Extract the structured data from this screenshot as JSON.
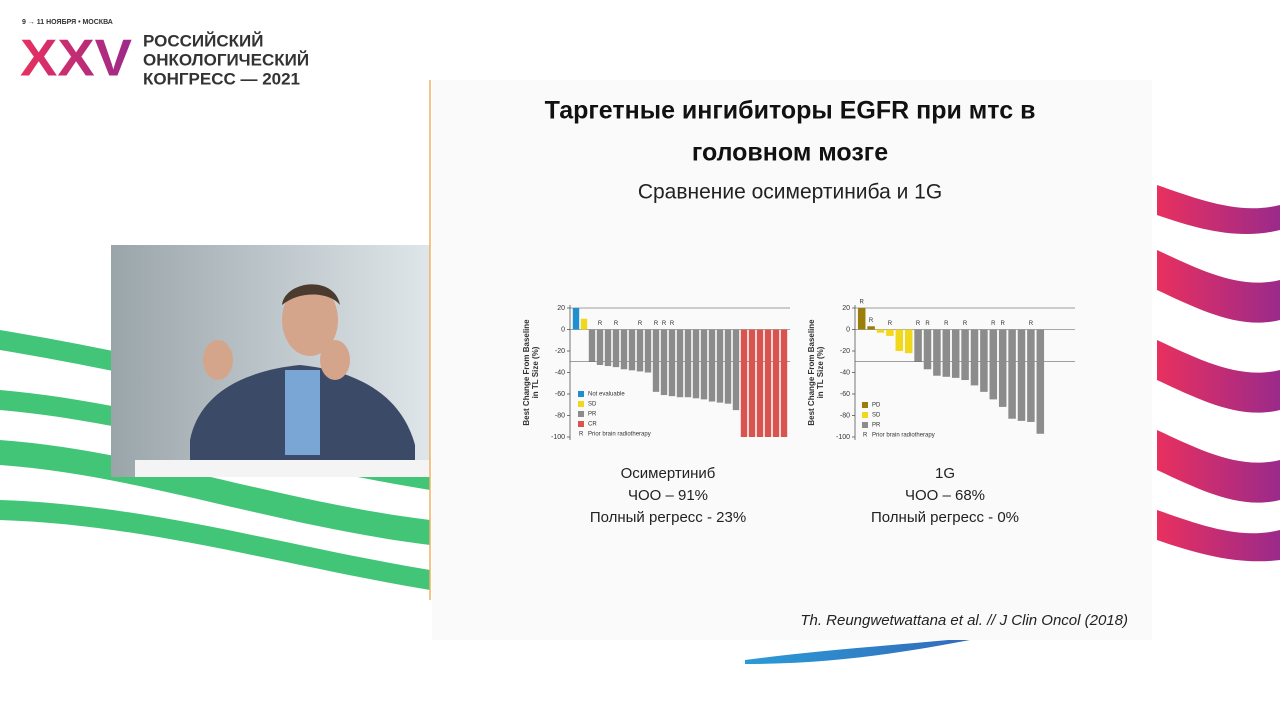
{
  "header": {
    "date": "9 → 11 НОЯБРЯ • МОСКВА",
    "logo": "XXV",
    "title_lines": [
      "РОССИЙСКИЙ",
      "ОНКОЛОГИЧЕСКИЙ",
      "КОНГРЕСС — 2021"
    ]
  },
  "slide": {
    "title_lines": [
      "Таргетные ингибиторы EGFR при мтс в",
      "головном мозге"
    ],
    "subtitle": "Сравнение осимертиниба и 1G",
    "citation": "Th. Reungwetwattana et al. // J Clin Oncol (2018)"
  },
  "chart_data": [
    {
      "type": "bar",
      "ylabel": [
        "Best Change From Baseline",
        "in TL Size (%)"
      ],
      "ylim": [
        -100,
        20
      ],
      "yticks": [
        20,
        0,
        -20,
        -40,
        -60,
        -80,
        -100
      ],
      "reference_lines": [
        20,
        -30
      ],
      "series": [
        {
          "name": "Not evaluable",
          "color": "#1f8fd0",
          "values": [
            20,
            null,
            null,
            null,
            null,
            null,
            null,
            null,
            null,
            null,
            null,
            null,
            null,
            null,
            null,
            null,
            null,
            null,
            null,
            null,
            null,
            null,
            null,
            null,
            null,
            null,
            null
          ]
        },
        {
          "name": "SD",
          "color": "#f2d81c",
          "values": [
            null,
            10,
            null,
            null,
            null,
            null,
            null,
            null,
            null,
            null,
            null,
            null,
            null,
            null,
            null,
            null,
            null,
            null,
            null,
            null,
            null,
            null,
            null,
            null,
            null,
            null,
            null
          ]
        },
        {
          "name": "PR",
          "color": "#8c8c8c",
          "values": [
            null,
            null,
            -30,
            -33,
            -34,
            -35,
            -37,
            -38,
            -39,
            -40,
            -58,
            -61,
            -62,
            -63,
            -63,
            -64,
            -65,
            -67,
            -68,
            -69,
            -75,
            null,
            null,
            null,
            null,
            null,
            null
          ]
        },
        {
          "name": "CR",
          "color": "#d9534f",
          "values": [
            null,
            null,
            null,
            null,
            null,
            null,
            null,
            null,
            null,
            null,
            null,
            null,
            null,
            null,
            null,
            null,
            null,
            null,
            null,
            null,
            null,
            -100,
            -100,
            -100,
            -100,
            -100,
            -100
          ]
        }
      ],
      "markers": [
        null,
        null,
        null,
        "R",
        null,
        "R",
        null,
        null,
        "R",
        null,
        "R",
        "R",
        "R",
        null,
        null,
        null,
        null,
        null,
        null,
        null,
        null,
        null,
        null,
        null,
        null,
        null,
        null
      ],
      "marker_legend": {
        "symbol": "R",
        "label": "Prior brain radiotherapy"
      },
      "caption": [
        "Осимертиниб",
        "ЧОО – 91%",
        "Полный регресс - 23%"
      ]
    },
    {
      "type": "bar",
      "ylabel": [
        "Best Change From Baseline",
        "in TL Size (%)"
      ],
      "ylim": [
        -100,
        20
      ],
      "yticks": [
        20,
        0,
        -20,
        -40,
        -60,
        -80,
        -100
      ],
      "reference_lines": [
        20,
        -30
      ],
      "series": [
        {
          "name": "PD",
          "color": "#9a7d0a",
          "values": [
            20,
            3,
            null,
            null,
            null,
            null,
            null,
            null,
            null,
            null,
            null,
            null,
            null,
            null,
            null,
            null,
            null,
            null,
            null,
            null
          ]
        },
        {
          "name": "SD",
          "color": "#f2d81c",
          "values": [
            null,
            null,
            -3,
            -6,
            -20,
            -22,
            null,
            null,
            null,
            null,
            null,
            null,
            null,
            null,
            null,
            null,
            null,
            null,
            null,
            null
          ]
        },
        {
          "name": "PR",
          "color": "#8c8c8c",
          "values": [
            null,
            null,
            null,
            null,
            null,
            null,
            -30,
            -37,
            -43,
            -44,
            -45,
            -47,
            -52,
            -58,
            -65,
            -72,
            -83,
            -85,
            -86,
            -97
          ]
        }
      ],
      "markers": [
        "R",
        "R",
        null,
        "R",
        null,
        null,
        "R",
        "R",
        null,
        "R",
        null,
        "R",
        null,
        null,
        "R",
        "R",
        null,
        null,
        "R",
        null
      ],
      "marker_legend": {
        "symbol": "R",
        "label": "Prior brain radiotherapy"
      },
      "caption": [
        "1G",
        "ЧОО – 68%",
        "Полный регресс - 0%"
      ]
    }
  ]
}
